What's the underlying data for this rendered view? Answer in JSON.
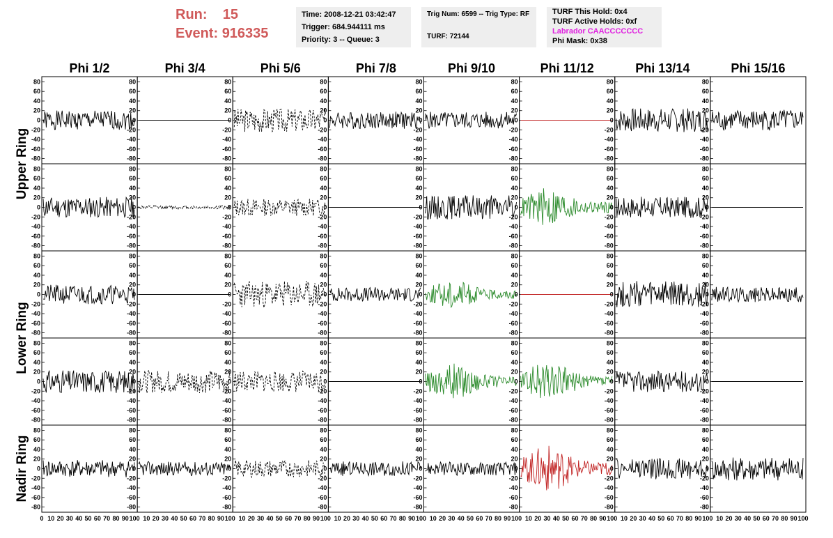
{
  "header": {
    "run_label": "Run:",
    "run_value": "15",
    "event_label": "Event:",
    "event_value": "916335",
    "time": "Time: 2008-12-21 03:42:47",
    "trigger": "Trigger: 684.944111 ms",
    "priority": "Priority: 3 -- Queue: 3",
    "trig_num": "Trig Num: 6599 -- Trig Type: RF",
    "turf": "TURF: 72144",
    "turf_hold": "TURF This Hold: 0x4",
    "turf_active": "TURF Active Holds: 0xf",
    "labrador": "Labrador CAACCCCCCC",
    "phi_mask": "Phi Mask: 0x38"
  },
  "colors": {
    "header_text": "#d05a5a",
    "labrador": "#e020e0",
    "green_trace": "#2a8a2a",
    "red_trace": "#c02020",
    "black_trace": "#000000"
  },
  "chart_data": {
    "type": "line",
    "description_columns": [
      "Phi 1/2",
      "Phi 3/4",
      "Phi 5/6",
      "Phi 7/8",
      "Phi 9/10",
      "Phi 11/12",
      "Phi 13/14",
      "Phi 15/16"
    ],
    "rows": [
      "Upper Ring",
      "Upper Ring",
      "Lower Ring",
      "Lower Ring",
      "Nadir Ring"
    ],
    "row_labels": [
      "Upper Ring",
      "Lower Ring",
      "Nadir Ring"
    ],
    "xlim": [
      0,
      100
    ],
    "ylim": [
      -85,
      85
    ],
    "y_ticks": [
      80,
      60,
      40,
      20,
      0,
      -20,
      -40,
      -60,
      -80
    ],
    "x_ticks": [
      0,
      10,
      20,
      30,
      40,
      50,
      60,
      70,
      80,
      90,
      100
    ],
    "panels": [
      [
        "bk:20:1",
        "flat:bk",
        "dash:25:3",
        "bk:18:4",
        "bk:18:5",
        "flat:rd",
        "bk:25:7",
        "bk:22:8"
      ],
      [
        "bk:22:11",
        "dashs:4:12",
        "dash:18:13",
        "flat:bk",
        "bk:25:15",
        "gr:30:16",
        "bk:22:17",
        "flat:bk"
      ],
      [
        "bk:20:21",
        "flat:bk",
        "dash:28:23",
        "bk:15:24",
        "gr:22:25",
        "flat:rd",
        "bk:28:27",
        "bk:16:28"
      ],
      [
        "bk:24:31",
        "dash:24:32",
        "dash:22:33",
        "flat:bk",
        "gr:28:35",
        "gr:30:36",
        "bk:22:37",
        "flat:bk"
      ],
      [
        "bk:18:41",
        "bk:15:42",
        "dash:18:43",
        "bk:15:44",
        "bk:14:45",
        "rdb:35:46",
        "bk:22:47",
        "bk:25:48"
      ]
    ]
  }
}
